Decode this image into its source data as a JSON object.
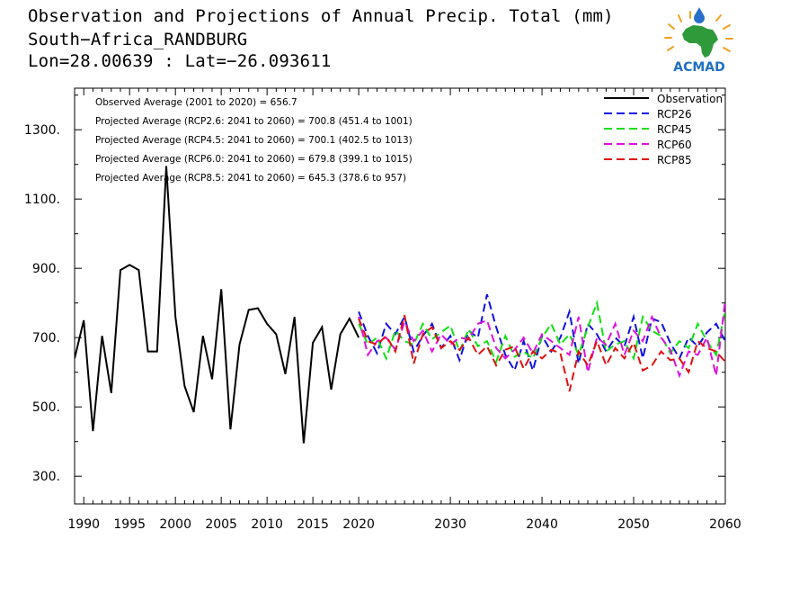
{
  "title": {
    "line1": "Observation and Projections of Annual Precip. Total (mm)",
    "line2": "South−Africa_RANDBURG",
    "line3": "Lon=28.00639 : Lat=−26.093611"
  },
  "logo": {
    "text": "ACMAD",
    "icon": "africa-map-sun-logo"
  },
  "chart_data": {
    "type": "line",
    "title": "Observation and Projections of Annual Precip. Total (mm)",
    "xlim": [
      1989,
      2060
    ],
    "ylim": [
      220,
      1420
    ],
    "x_ticks": [
      1990,
      1995,
      2000,
      2005,
      2010,
      2015,
      2020,
      2030,
      2040,
      2050,
      2060
    ],
    "y_ticks": [
      300,
      500,
      700,
      900,
      1100,
      1300
    ],
    "y_tick_labels": [
      "300.",
      "500.",
      "700.",
      "900.",
      "1100.",
      "1300."
    ],
    "grid": false,
    "legend_position": "top-right",
    "annotations": [
      "Observed Average (2001 to 2020) = 656.7",
      "Projected Average (RCP2.6: 2041 to 2060) = 700.8 (451.4 to 1001)",
      "Projected Average (RCP4.5: 2041 to 2060) = 700.1 (402.5 to 1013)",
      "Projected Average (RCP6.0: 2041 to 2060) = 679.8 (399.1 to 1015)",
      "Projected Average (RCP8.5: 2041 to 2060) = 645.3 (378.6 to 957)"
    ],
    "series": [
      {
        "name": "Observation",
        "color": "#000000",
        "dash": "solid",
        "x": [
          1989,
          1990,
          1991,
          1992,
          1993,
          1994,
          1995,
          1996,
          1997,
          1998,
          1999,
          2000,
          2001,
          2002,
          2003,
          2004,
          2005,
          2006,
          2007,
          2008,
          2009,
          2010,
          2011,
          2012,
          2013,
          2014,
          2015,
          2016,
          2017,
          2018,
          2019,
          2020
        ],
        "values": [
          640,
          750,
          430,
          705,
          540,
          895,
          910,
          895,
          660,
          660,
          1195,
          760,
          560,
          485,
          705,
          580,
          840,
          435,
          680,
          780,
          785,
          740,
          710,
          595,
          760,
          395,
          685,
          730,
          550,
          710,
          755,
          700
        ]
      },
      {
        "name": "RCP26",
        "color": "#1010e0",
        "dash": "dashed",
        "x": [
          2020,
          2021,
          2022,
          2023,
          2024,
          2025,
          2026,
          2027,
          2028,
          2029,
          2030,
          2031,
          2032,
          2033,
          2034,
          2035,
          2036,
          2037,
          2038,
          2039,
          2040,
          2041,
          2042,
          2043,
          2044,
          2045,
          2046,
          2047,
          2048,
          2049,
          2050,
          2051,
          2052,
          2053,
          2054,
          2055,
          2056,
          2057,
          2058,
          2059,
          2060
        ],
        "values": [
          775,
          705,
          655,
          740,
          710,
          760,
          660,
          705,
          740,
          670,
          705,
          635,
          720,
          700,
          825,
          730,
          650,
          605,
          690,
          605,
          705,
          660,
          700,
          775,
          625,
          740,
          710,
          660,
          700,
          675,
          760,
          640,
          755,
          745,
          685,
          640,
          700,
          675,
          715,
          740,
          690
        ]
      },
      {
        "name": "RCP45",
        "color": "#10e010",
        "dash": "dashed",
        "x": [
          2020,
          2021,
          2022,
          2023,
          2024,
          2025,
          2026,
          2027,
          2028,
          2029,
          2030,
          2031,
          2032,
          2033,
          2034,
          2035,
          2036,
          2037,
          2038,
          2039,
          2040,
          2041,
          2042,
          2043,
          2044,
          2045,
          2046,
          2047,
          2048,
          2049,
          2050,
          2051,
          2052,
          2053,
          2054,
          2055,
          2056,
          2057,
          2058,
          2059,
          2060
        ],
        "values": [
          740,
          680,
          700,
          640,
          720,
          690,
          680,
          740,
          695,
          715,
          735,
          660,
          725,
          675,
          690,
          630,
          705,
          645,
          660,
          640,
          700,
          740,
          680,
          710,
          650,
          730,
          800,
          660,
          680,
          690,
          640,
          760,
          720,
          705,
          655,
          690,
          670,
          740,
          690,
          650,
          780
        ]
      },
      {
        "name": "RCP60",
        "color": "#e010e0",
        "dash": "dashed",
        "x": [
          2020,
          2021,
          2022,
          2023,
          2024,
          2025,
          2026,
          2027,
          2028,
          2029,
          2030,
          2031,
          2032,
          2033,
          2034,
          2035,
          2036,
          2037,
          2038,
          2039,
          2040,
          2041,
          2042,
          2043,
          2044,
          2045,
          2046,
          2047,
          2048,
          2049,
          2050,
          2051,
          2052,
          2053,
          2054,
          2055,
          2056,
          2057,
          2058,
          2059,
          2060
        ],
        "values": [
          760,
          650,
          690,
          700,
          665,
          745,
          690,
          720,
          660,
          710,
          680,
          700,
          695,
          740,
          750,
          670,
          640,
          665,
          700,
          655,
          710,
          690,
          670,
          650,
          760,
          600,
          700,
          680,
          740,
          650,
          720,
          690,
          760,
          700,
          665,
          590,
          660,
          650,
          700,
          590,
          810
        ]
      },
      {
        "name": "RCP85",
        "color": "#e01010",
        "dash": "dashed",
        "x": [
          2020,
          2021,
          2022,
          2023,
          2024,
          2025,
          2026,
          2027,
          2028,
          2029,
          2030,
          2031,
          2032,
          2033,
          2034,
          2035,
          2036,
          2037,
          2038,
          2039,
          2040,
          2041,
          2042,
          2043,
          2044,
          2045,
          2046,
          2047,
          2048,
          2049,
          2050,
          2051,
          2052,
          2053,
          2054,
          2055,
          2056,
          2057,
          2058,
          2059,
          2060
        ],
        "values": [
          755,
          690,
          680,
          705,
          660,
          765,
          625,
          710,
          730,
          670,
          690,
          665,
          700,
          650,
          675,
          620,
          665,
          675,
          610,
          660,
          640,
          665,
          655,
          545,
          660,
          620,
          690,
          620,
          670,
          640,
          685,
          605,
          620,
          660,
          635,
          640,
          600,
          690,
          670,
          660,
          630
        ]
      }
    ]
  }
}
